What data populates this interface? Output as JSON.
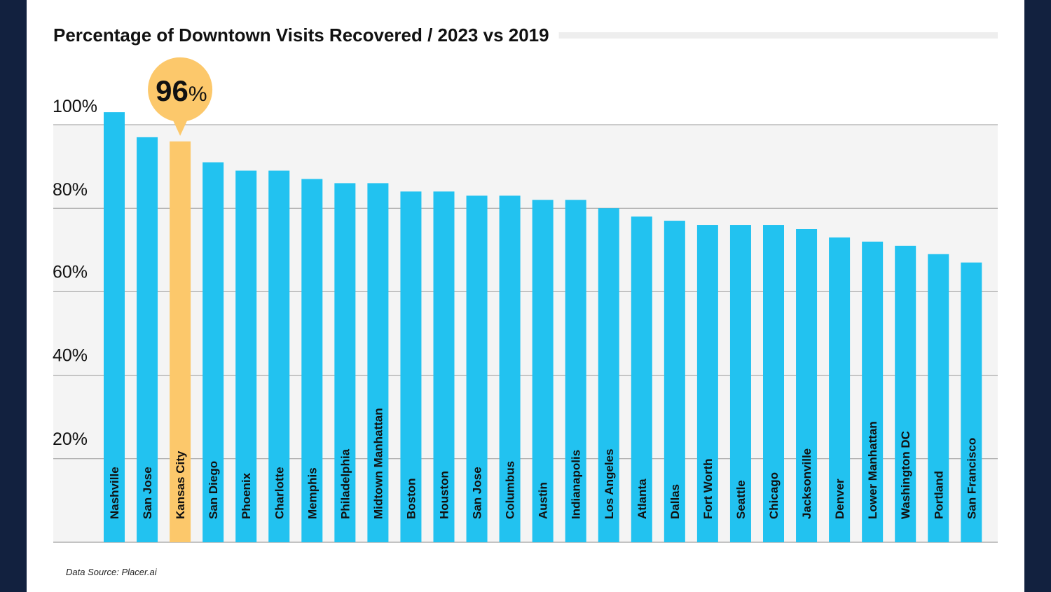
{
  "colors": {
    "bar": "#22c2f0",
    "highlight": "#fcc86b",
    "frame": "#12213f",
    "plot_bg": "#f4f4f4",
    "title_rule": "#eeeeee"
  },
  "chart_data": {
    "type": "bar",
    "title": "Percentage of Downtown Visits Recovered / 2023 vs 2019",
    "xlabel": "",
    "ylabel": "",
    "ylim": [
      0,
      100
    ],
    "yticks": [
      "20%",
      "40%",
      "60%",
      "80%",
      "100%"
    ],
    "grid": true,
    "categories": [
      "Nashville",
      "San Jose",
      "Kansas City",
      "San Diego",
      "Phoenix",
      "Charlotte",
      "Memphis",
      "Philadelphia",
      "Midtown Manhattan",
      "Boston",
      "Houston",
      "San Jose",
      "Columbus",
      "Austin",
      "Indianapolis",
      "Los Angeles",
      "Atlanta",
      "Dallas",
      "Fort Worth",
      "Seattle",
      "Chicago",
      "Jacksonville",
      "Denver",
      "Lower Manhattan",
      "Washington DC",
      "Portland",
      "San Francisco"
    ],
    "values": [
      103,
      97,
      96,
      91,
      89,
      89,
      87,
      86,
      86,
      84,
      84,
      83,
      83,
      82,
      82,
      80,
      78,
      77,
      76,
      76,
      76,
      75,
      73,
      72,
      71,
      69,
      67
    ],
    "highlight": {
      "category": "Kansas City",
      "label_number": "96",
      "label_unit": "%"
    },
    "source": "Data Source: Placer.ai"
  }
}
